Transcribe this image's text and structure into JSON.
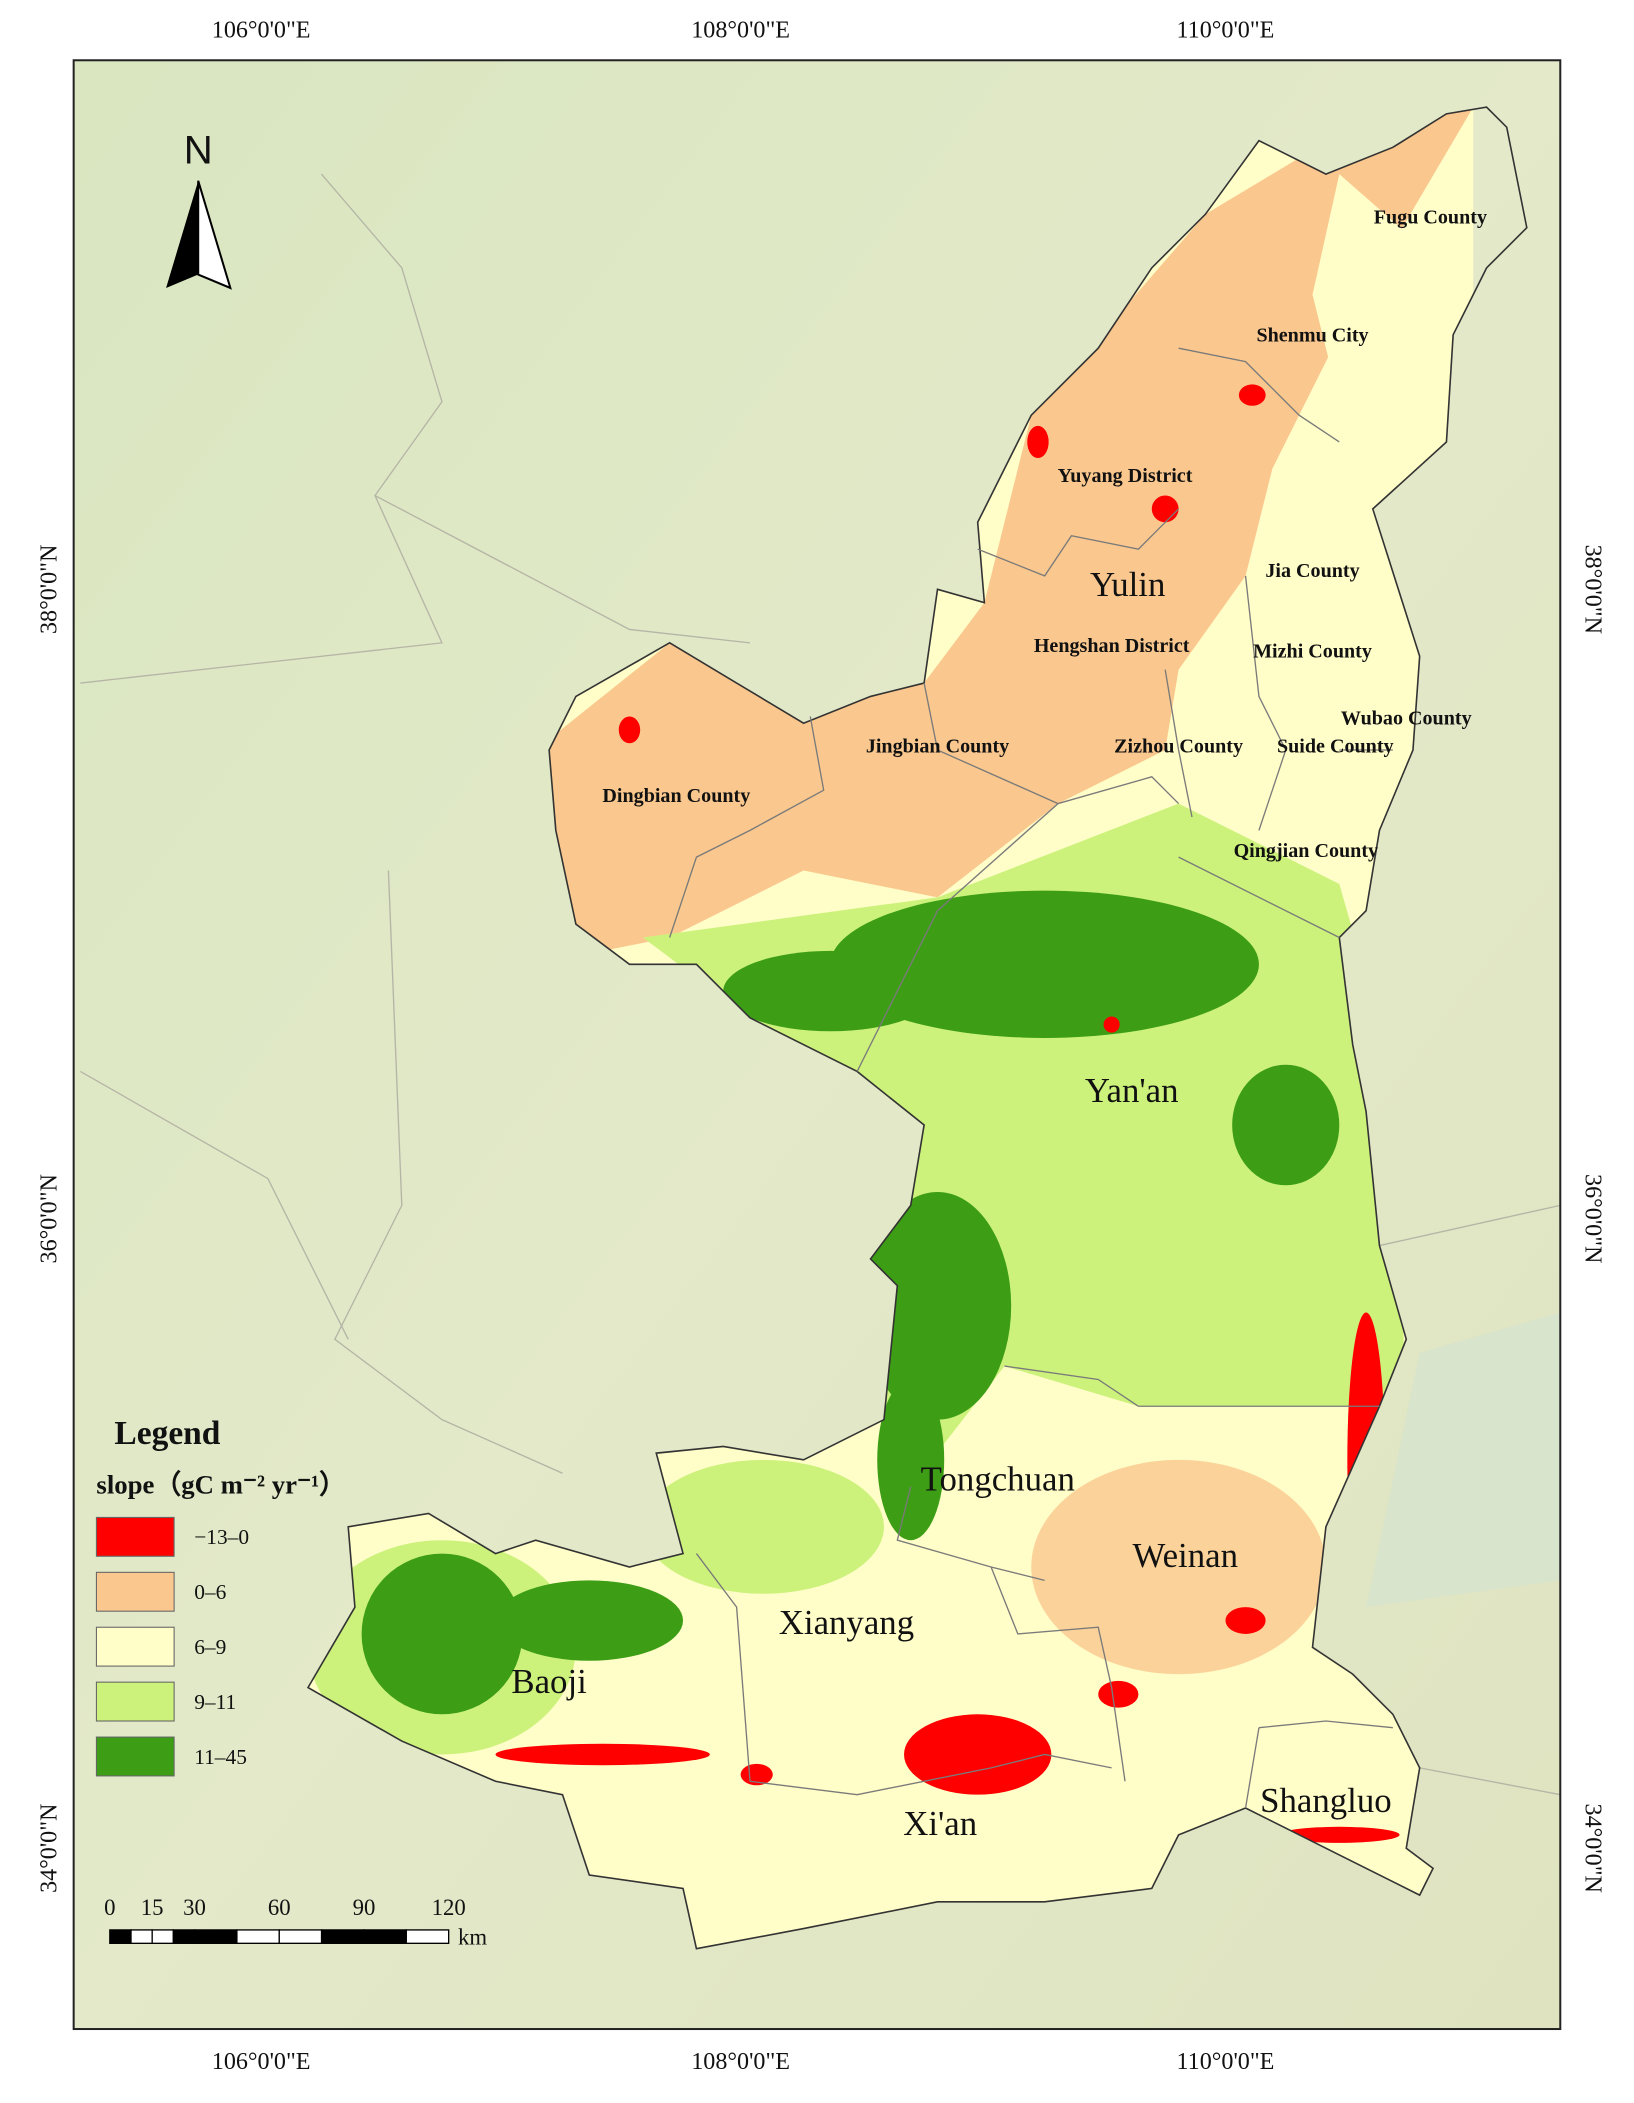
{
  "map": {
    "graticule": {
      "top": [
        "106°0'0\"E",
        "108°0'0\"E",
        "110°0'0\"E"
      ],
      "bottom": [
        "106°0'0\"E",
        "108°0'0\"E",
        "110°0'0\"E"
      ],
      "left": [
        "38°0'0\"N",
        "36°0'0\"N",
        "34°0'0\"N"
      ],
      "right": [
        "38°0'0\"N",
        "36°0'0\"N",
        "34°0'0\"N"
      ]
    },
    "north_arrow": "N",
    "cities": [
      "Yulin",
      "Yan'an",
      "Tongchuan",
      "Weinan",
      "Xianyang",
      "Baoji",
      "Xi'an",
      "Shangluo"
    ],
    "counties": [
      "Fugu County",
      "Shenmu City",
      "Yuyang District",
      "Jia County",
      "Hengshan District",
      "Mizhi County",
      "Wubao County",
      "Jingbian County",
      "Zizhou County",
      "Suide County",
      "Dingbian County",
      "Qingjian County"
    ],
    "legend": {
      "title": "Legend",
      "subtitle": "slope（gC m⁻² yr⁻¹）",
      "items": [
        {
          "label": "−13–0",
          "color": "#ff0000"
        },
        {
          "label": "0–6",
          "color": "#fac88e"
        },
        {
          "label": "6–9",
          "color": "#fffdc8"
        },
        {
          "label": "9–11",
          "color": "#ccf27c"
        },
        {
          "label": "11–45",
          "color": "#3d9e16"
        }
      ]
    },
    "scale_bar": {
      "ticks": [
        0,
        15,
        30,
        60,
        90,
        120
      ],
      "unit": "km"
    }
  }
}
